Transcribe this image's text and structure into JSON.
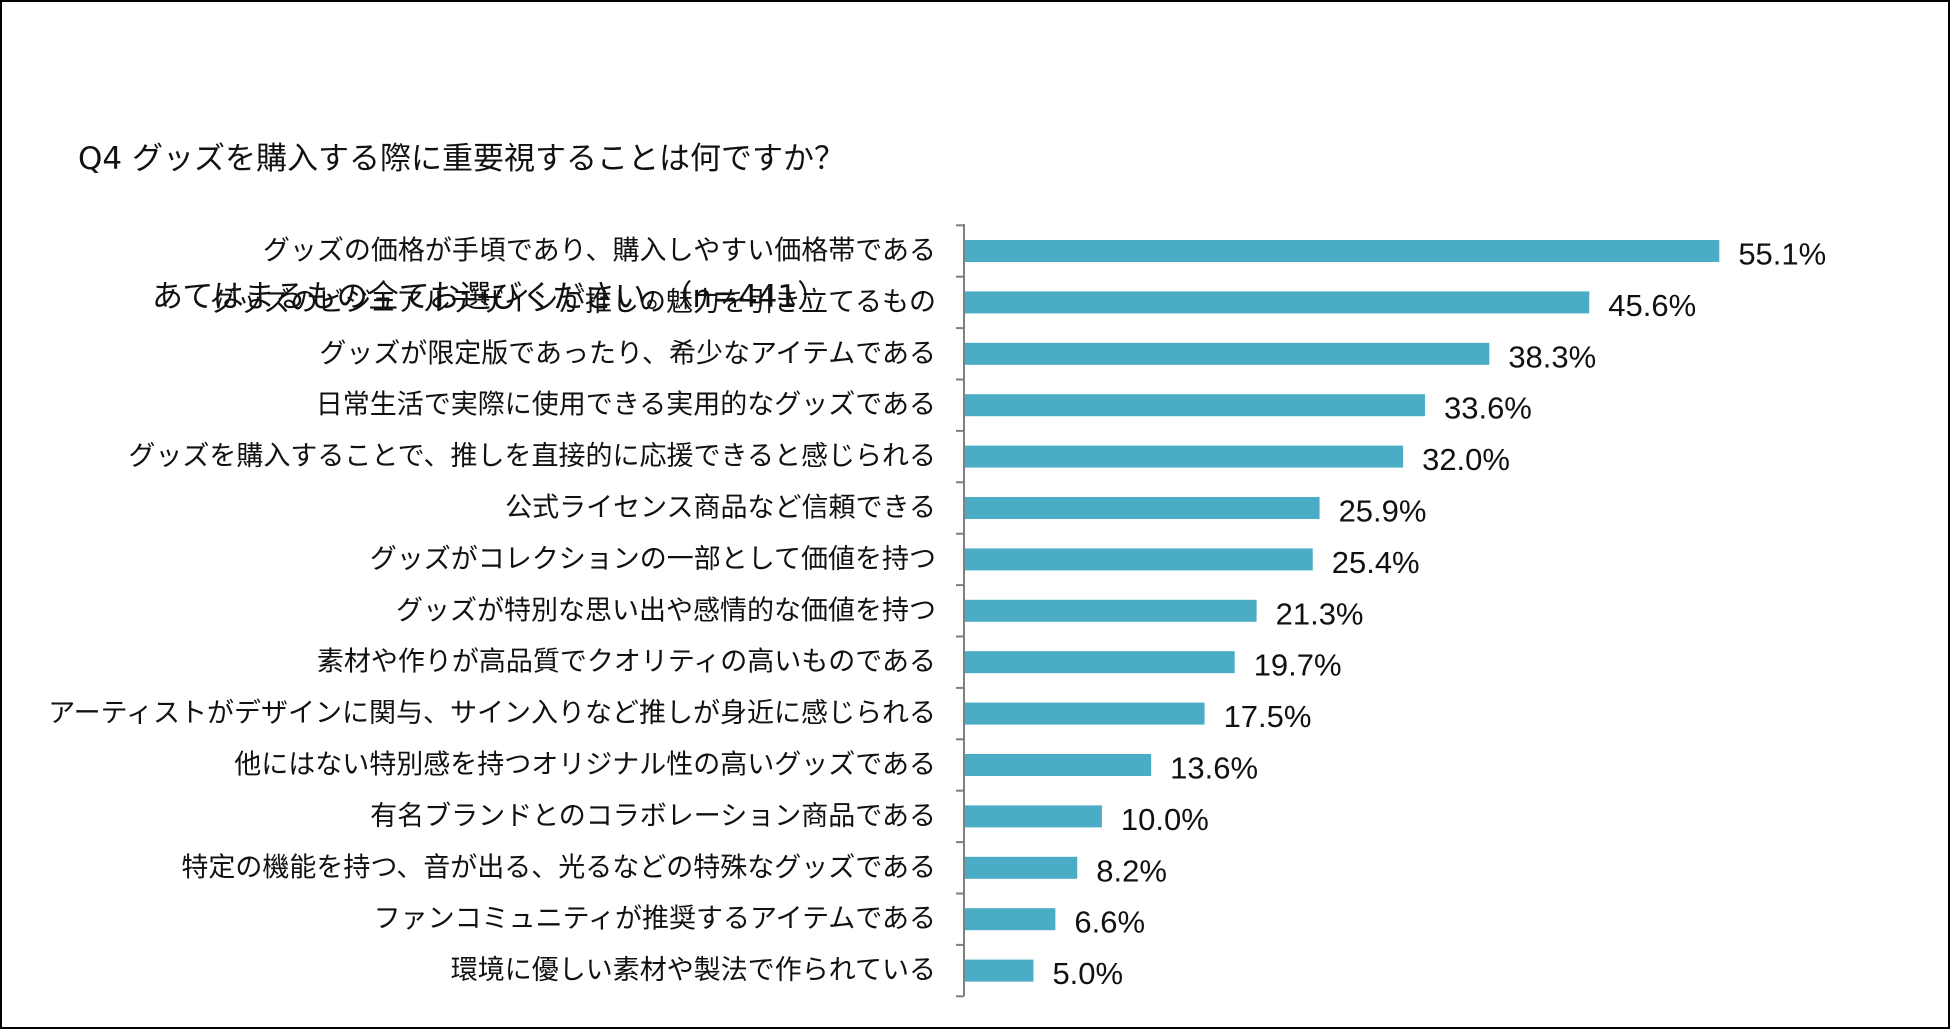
{
  "chart_data": {
    "type": "bar",
    "orientation": "horizontal",
    "title_line1": "Q4 グッズを購入する際に重要視することは何ですか？",
    "title_line2": "あてはまるもの全てお選びください。（n=441）",
    "value_suffix": "%",
    "xlim": [
      0,
      60
    ],
    "grid": false,
    "legend": "none",
    "colors": {
      "bar": "#4BACC6",
      "axis": "#7F7F7F",
      "text": "#111111"
    },
    "categories": [
      "グッズの価格が手頃であり、購入しやすい価格帯である",
      "グッズのビジュアルデザインが推しの魅力を引き立てるもの",
      "グッズが限定版であったり、希少なアイテムである",
      "日常生活で実際に使用できる実用的なグッズである",
      "グッズを購入することで、推しを直接的に応援できると感じられる",
      "公式ライセンス商品など信頼できる",
      "グッズがコレクションの一部として価値を持つ",
      "グッズが特別な思い出や感情的な価値を持つ",
      "素材や作りが高品質でクオリティの高いものである",
      "アーティストがデザインに関与、サイン入りなど推しが身近に感じられる",
      "他にはない特別感を持つオリジナル性の高いグッズである",
      "有名ブランドとのコラボレーション商品である",
      "特定の機能を持つ、音が出る、光るなどの特殊なグッズである",
      "ファンコミュニティが推奨するアイテムである",
      "環境に優しい素材や製法で作られている"
    ],
    "values": [
      55.1,
      45.6,
      38.3,
      33.6,
      32.0,
      25.9,
      25.4,
      21.3,
      19.7,
      17.5,
      13.6,
      10.0,
      8.2,
      6.6,
      5.0
    ],
    "value_labels": [
      "55.1%",
      "45.6%",
      "38.3%",
      "33.6%",
      "32.0%",
      "25.9%",
      "25.4%",
      "21.3%",
      "19.7%",
      "17.5%",
      "13.6%",
      "10.0%",
      "8.2%",
      "6.6%",
      "5.0%"
    ]
  }
}
